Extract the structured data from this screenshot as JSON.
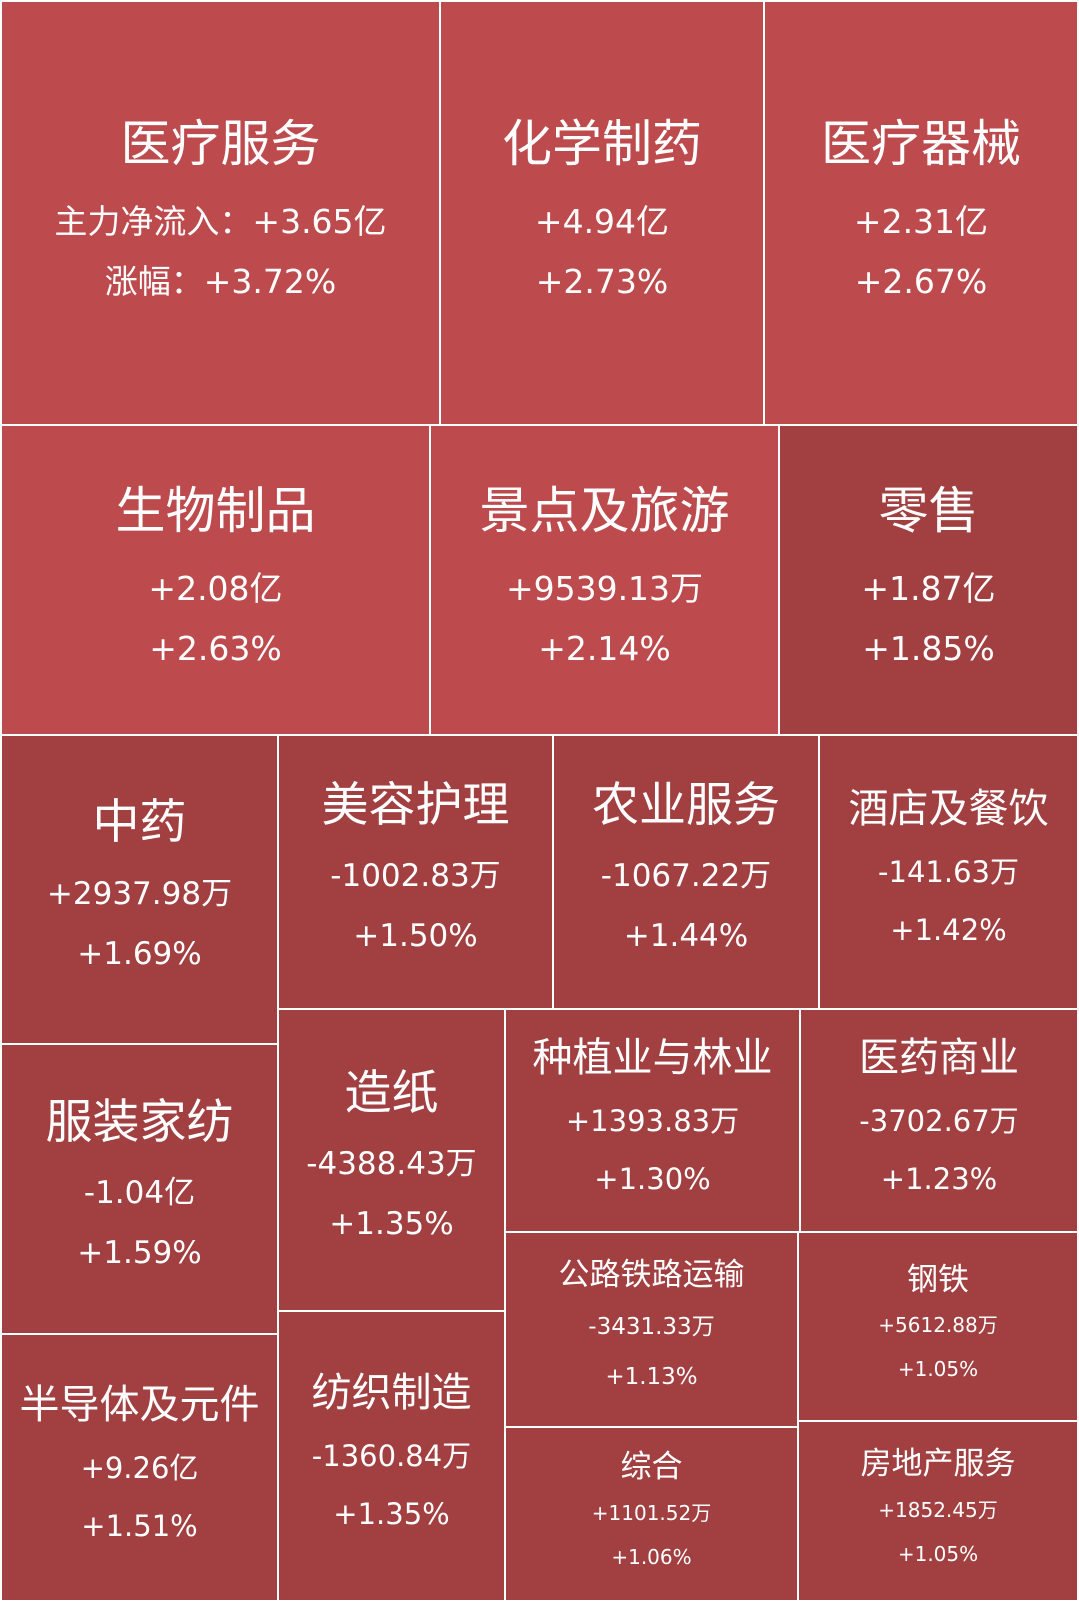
{
  "labels": {
    "inflow_prefix": "主力净流入：",
    "change_prefix": "涨幅："
  },
  "colors": {
    "strong": "#bd4a4c",
    "mild": "#a13f41",
    "border": "#ffffff",
    "text": "#ffffff"
  },
  "chart_data": {
    "type": "treemap",
    "title": "",
    "value_labels": [
      "主力净流入",
      "涨幅"
    ],
    "sectors": [
      {
        "name": "医疗服务",
        "inflow": "+3.65亿",
        "change": "+3.72%",
        "inflow_yi": 3.65,
        "change_pct": 3.72
      },
      {
        "name": "化学制药",
        "inflow": "+4.94亿",
        "change": "+2.73%",
        "inflow_yi": 4.94,
        "change_pct": 2.73
      },
      {
        "name": "医疗器械",
        "inflow": "+2.31亿",
        "change": "+2.67%",
        "inflow_yi": 2.31,
        "change_pct": 2.67
      },
      {
        "name": "生物制品",
        "inflow": "+2.08亿",
        "change": "+2.63%",
        "inflow_yi": 2.08,
        "change_pct": 2.63
      },
      {
        "name": "景点及旅游",
        "inflow": "+9539.13万",
        "change": "+2.14%",
        "inflow_yi": 0.9539,
        "change_pct": 2.14
      },
      {
        "name": "零售",
        "inflow": "+1.87亿",
        "change": "+1.85%",
        "inflow_yi": 1.87,
        "change_pct": 1.85
      },
      {
        "name": "中药",
        "inflow": "+2937.98万",
        "change": "+1.69%",
        "inflow_yi": 0.2938,
        "change_pct": 1.69
      },
      {
        "name": "美容护理",
        "inflow": "-1002.83万",
        "change": "+1.50%",
        "inflow_yi": -0.1003,
        "change_pct": 1.5
      },
      {
        "name": "农业服务",
        "inflow": "-1067.22万",
        "change": "+1.44%",
        "inflow_yi": -0.1067,
        "change_pct": 1.44
      },
      {
        "name": "酒店及餐饮",
        "inflow": "-141.63万",
        "change": "+1.42%",
        "inflow_yi": -0.0142,
        "change_pct": 1.42
      },
      {
        "name": "服装家纺",
        "inflow": "-1.04亿",
        "change": "+1.59%",
        "inflow_yi": -1.04,
        "change_pct": 1.59
      },
      {
        "name": "造纸",
        "inflow": "-4388.43万",
        "change": "+1.35%",
        "inflow_yi": -0.4388,
        "change_pct": 1.35
      },
      {
        "name": "种植业与林业",
        "inflow": "+1393.83万",
        "change": "+1.30%",
        "inflow_yi": 0.1394,
        "change_pct": 1.3
      },
      {
        "name": "医药商业",
        "inflow": "-3702.67万",
        "change": "+1.23%",
        "inflow_yi": -0.3703,
        "change_pct": 1.23
      },
      {
        "name": "公路铁路运输",
        "inflow": "-3431.33万",
        "change": "+1.13%",
        "inflow_yi": -0.3431,
        "change_pct": 1.13
      },
      {
        "name": "钢铁",
        "inflow": "+5612.88万",
        "change": "+1.05%",
        "inflow_yi": 0.5613,
        "change_pct": 1.05
      },
      {
        "name": "半导体及元件",
        "inflow": "+9.26亿",
        "change": "+1.51%",
        "inflow_yi": 9.26,
        "change_pct": 1.51
      },
      {
        "name": "纺织制造",
        "inflow": "-1360.84万",
        "change": "+1.35%",
        "inflow_yi": -0.1361,
        "change_pct": 1.35
      },
      {
        "name": "综合",
        "inflow": "+1101.52万",
        "change": "+1.06%",
        "inflow_yi": 0.1102,
        "change_pct": 1.06
      },
      {
        "name": "房地产服务",
        "inflow": "+1852.45万",
        "change": "+1.05%",
        "inflow_yi": 0.1852,
        "change_pct": 1.05
      }
    ]
  }
}
